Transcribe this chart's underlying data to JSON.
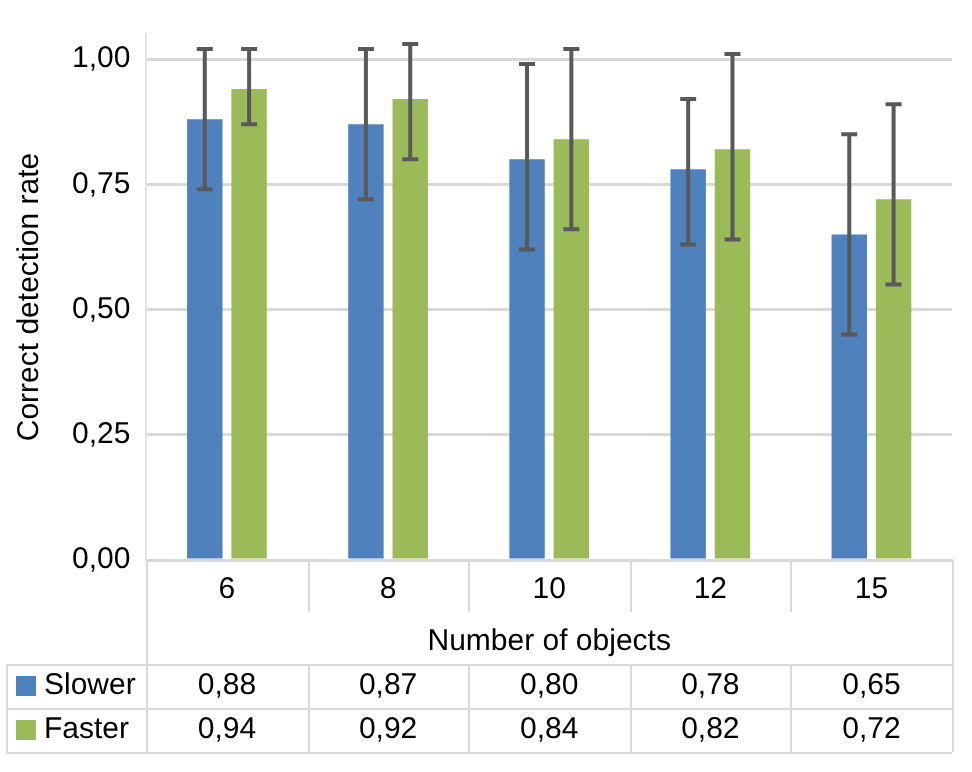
{
  "chart_data": {
    "type": "bar",
    "xlabel": "Number of objects",
    "ylabel": "Correct detection rate",
    "categories": [
      "6",
      "8",
      "10",
      "12",
      "15"
    ],
    "series": [
      {
        "name": "Slower",
        "color": "#4f81bd",
        "values": [
          0.88,
          0.87,
          0.8,
          0.78,
          0.65
        ],
        "value_labels": [
          "0,88",
          "0,87",
          "0,80",
          "0,78",
          "0,65"
        ],
        "errors": [
          [
            0.74,
            1.02
          ],
          [
            0.72,
            1.02
          ],
          [
            0.62,
            0.99
          ],
          [
            0.63,
            0.92
          ],
          [
            0.45,
            0.85
          ]
        ]
      },
      {
        "name": "Faster",
        "color": "#9bbb59",
        "values": [
          0.94,
          0.92,
          0.84,
          0.82,
          0.72
        ],
        "value_labels": [
          "0,94",
          "0,92",
          "0,84",
          "0,82",
          "0,72"
        ],
        "errors": [
          [
            0.87,
            1.02
          ],
          [
            0.8,
            1.03
          ],
          [
            0.66,
            1.02
          ],
          [
            0.64,
            1.01
          ],
          [
            0.55,
            0.91
          ]
        ]
      }
    ],
    "ylim": [
      0,
      1.05
    ],
    "yticks": [
      {
        "value": 0,
        "label": "0,00"
      },
      {
        "value": 0.25,
        "label": "0,25"
      },
      {
        "value": 0.5,
        "label": "0,50"
      },
      {
        "value": 0.75,
        "label": "0,75"
      },
      {
        "value": 1,
        "label": "1,00"
      }
    ],
    "grid": "y",
    "legend": "bottom"
  }
}
